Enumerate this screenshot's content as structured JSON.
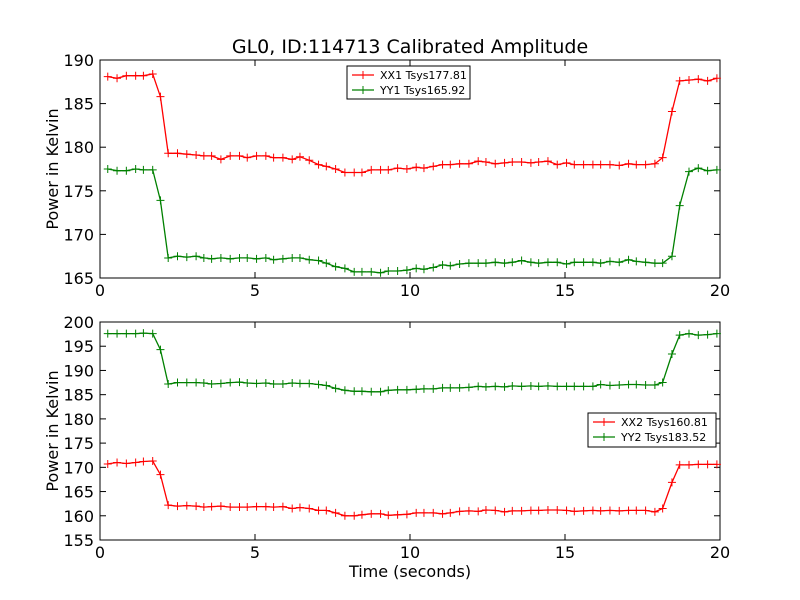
{
  "figure_title": "GL0, ID:114713 Calibrated Amplitude",
  "colors": {
    "red": "#ff0000",
    "green": "#008000",
    "axes": "#000000",
    "background": "#ffffff"
  },
  "chart_data": [
    {
      "type": "line",
      "title": "GL0, ID:114713 Calibrated Amplitude",
      "xlabel": "",
      "ylabel": "Power in Kelvin",
      "xlim": [
        0,
        20
      ],
      "ylim": [
        165,
        190
      ],
      "xticks": [
        0,
        5,
        10,
        15,
        20
      ],
      "yticks": [
        165,
        170,
        175,
        180,
        185,
        190
      ],
      "grid": false,
      "legend_position": "top-center",
      "x": [
        0.25,
        0.55,
        0.85,
        1.15,
        1.4,
        1.7,
        1.95,
        2.2,
        2.5,
        2.8,
        3.1,
        3.35,
        3.6,
        3.9,
        4.2,
        4.5,
        4.75,
        5.05,
        5.35,
        5.6,
        5.9,
        6.2,
        6.45,
        6.75,
        7.05,
        7.3,
        7.6,
        7.9,
        8.2,
        8.45,
        8.75,
        9.05,
        9.3,
        9.6,
        9.9,
        10.2,
        10.45,
        10.75,
        11.05,
        11.3,
        11.6,
        11.9,
        12.2,
        12.45,
        12.75,
        13.05,
        13.3,
        13.6,
        13.9,
        14.15,
        14.45,
        14.75,
        15.05,
        15.3,
        15.6,
        15.9,
        16.15,
        16.45,
        16.75,
        17.05,
        17.3,
        17.6,
        17.9,
        18.15,
        18.45,
        18.7,
        19.0,
        19.3,
        19.6,
        19.9
      ],
      "series": [
        {
          "name": "XX1 Tsys177.81",
          "color": "#ff0000",
          "values": [
            188.1,
            187.9,
            188.2,
            188.2,
            188.2,
            188.4,
            185.8,
            179.3,
            179.3,
            179.2,
            179.1,
            179.0,
            179.0,
            178.6,
            179.0,
            179.0,
            178.8,
            179.0,
            179.0,
            178.8,
            178.8,
            178.6,
            178.9,
            178.5,
            178.0,
            177.8,
            177.5,
            177.1,
            177.1,
            177.1,
            177.4,
            177.4,
            177.4,
            177.6,
            177.5,
            177.7,
            177.6,
            177.8,
            178.0,
            178.0,
            178.1,
            178.1,
            178.4,
            178.3,
            178.1,
            178.2,
            178.3,
            178.3,
            178.2,
            178.3,
            178.4,
            178.0,
            178.2,
            178.0,
            178.0,
            178.0,
            178.0,
            178.0,
            177.9,
            178.1,
            178.0,
            178.0,
            178.1,
            178.8,
            184.1,
            187.6,
            187.7,
            187.8,
            187.6,
            187.9
          ]
        },
        {
          "name": "YY1 Tsys165.92",
          "color": "#008000",
          "values": [
            177.5,
            177.3,
            177.3,
            177.5,
            177.4,
            177.4,
            173.9,
            167.3,
            167.5,
            167.4,
            167.5,
            167.3,
            167.2,
            167.3,
            167.2,
            167.3,
            167.3,
            167.2,
            167.3,
            167.1,
            167.2,
            167.3,
            167.3,
            167.1,
            167.0,
            166.7,
            166.3,
            166.1,
            165.7,
            165.7,
            165.7,
            165.6,
            165.8,
            165.8,
            165.9,
            166.1,
            166.0,
            166.2,
            166.5,
            166.4,
            166.6,
            166.7,
            166.7,
            166.7,
            166.8,
            166.7,
            166.8,
            167.0,
            166.8,
            166.7,
            166.8,
            166.8,
            166.6,
            166.8,
            166.8,
            166.8,
            166.7,
            166.9,
            166.8,
            167.1,
            166.9,
            166.8,
            166.7,
            166.7,
            167.5,
            173.3,
            177.2,
            177.6,
            177.3,
            177.4
          ]
        }
      ]
    },
    {
      "type": "line",
      "title": "",
      "xlabel": "Time (seconds)",
      "ylabel": "Power in Kelvin",
      "xlim": [
        0,
        20
      ],
      "ylim": [
        155,
        200
      ],
      "xticks": [
        0,
        5,
        10,
        15,
        20
      ],
      "yticks": [
        155,
        160,
        165,
        170,
        175,
        180,
        185,
        190,
        195,
        200
      ],
      "grid": false,
      "legend_position": "center-right",
      "x": [
        0.25,
        0.55,
        0.85,
        1.15,
        1.4,
        1.7,
        1.95,
        2.2,
        2.5,
        2.8,
        3.1,
        3.35,
        3.6,
        3.9,
        4.2,
        4.5,
        4.75,
        5.05,
        5.35,
        5.6,
        5.9,
        6.2,
        6.45,
        6.75,
        7.05,
        7.3,
        7.6,
        7.9,
        8.2,
        8.45,
        8.75,
        9.05,
        9.3,
        9.6,
        9.9,
        10.2,
        10.45,
        10.75,
        11.05,
        11.3,
        11.6,
        11.9,
        12.2,
        12.45,
        12.75,
        13.05,
        13.3,
        13.6,
        13.9,
        14.15,
        14.45,
        14.75,
        15.05,
        15.3,
        15.6,
        15.9,
        16.15,
        16.45,
        16.75,
        17.05,
        17.3,
        17.6,
        17.9,
        18.15,
        18.45,
        18.7,
        19.0,
        19.3,
        19.6,
        19.9
      ],
      "series": [
        {
          "name": "XX2 Tsys160.81",
          "color": "#ff0000",
          "values": [
            170.7,
            171.0,
            170.8,
            171.0,
            171.2,
            171.3,
            168.5,
            162.2,
            162.0,
            162.1,
            162.0,
            161.8,
            161.9,
            162.0,
            161.8,
            161.8,
            161.8,
            161.9,
            161.9,
            161.8,
            161.9,
            161.5,
            161.7,
            161.5,
            161.1,
            161.1,
            160.6,
            160.0,
            160.0,
            160.2,
            160.4,
            160.4,
            160.1,
            160.2,
            160.3,
            160.6,
            160.6,
            160.6,
            160.4,
            160.6,
            160.9,
            161.0,
            160.9,
            161.2,
            161.1,
            160.8,
            161.0,
            161.0,
            161.1,
            161.1,
            161.2,
            161.2,
            161.1,
            160.9,
            161.0,
            161.1,
            161.0,
            161.1,
            161.0,
            161.1,
            161.1,
            161.1,
            160.8,
            161.5,
            166.9,
            170.5,
            170.5,
            170.6,
            170.6,
            170.6
          ]
        },
        {
          "name": "YY2 Tsys183.52",
          "color": "#008000",
          "values": [
            197.6,
            197.6,
            197.6,
            197.6,
            197.7,
            197.6,
            194.3,
            187.2,
            187.5,
            187.5,
            187.5,
            187.4,
            187.2,
            187.3,
            187.5,
            187.6,
            187.4,
            187.3,
            187.4,
            187.2,
            187.2,
            187.4,
            187.3,
            187.3,
            187.1,
            186.9,
            186.3,
            185.9,
            185.7,
            185.7,
            185.6,
            185.6,
            185.9,
            186.0,
            186.0,
            186.1,
            186.2,
            186.2,
            186.4,
            186.4,
            186.4,
            186.5,
            186.7,
            186.6,
            186.7,
            186.6,
            186.8,
            186.7,
            186.8,
            186.7,
            186.8,
            186.7,
            186.7,
            186.7,
            186.7,
            186.7,
            187.1,
            186.9,
            187.0,
            187.1,
            187.1,
            187.0,
            187.0,
            187.5,
            193.4,
            197.3,
            197.6,
            197.3,
            197.4,
            197.6
          ]
        }
      ]
    }
  ]
}
